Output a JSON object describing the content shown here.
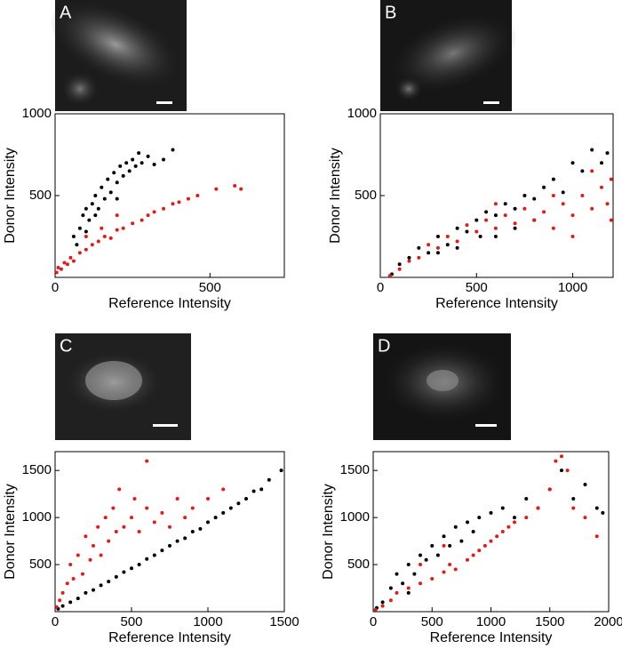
{
  "chart_data": [
    {
      "type": "scatter",
      "panel": "A",
      "x_label": "Reference Intensity",
      "y_label": "Donor Intensity",
      "xlim": [
        0,
        740
      ],
      "ylim": [
        0,
        1000
      ],
      "xticks": [
        0,
        500
      ],
      "yticks": [
        500,
        1000
      ],
      "series": [
        {
          "color": "#000000",
          "x": [
            60,
            80,
            90,
            100,
            110,
            120,
            130,
            140,
            150,
            160,
            170,
            180,
            190,
            200,
            210,
            220,
            230,
            240,
            250,
            260,
            270,
            280,
            300,
            320,
            350,
            380,
            70,
            100,
            130,
            200
          ],
          "y": [
            250,
            300,
            380,
            420,
            350,
            450,
            500,
            420,
            550,
            480,
            600,
            520,
            640,
            580,
            680,
            620,
            700,
            650,
            720,
            680,
            760,
            700,
            740,
            690,
            720,
            780,
            200,
            280,
            380,
            480
          ]
        },
        {
          "color": "#e41a1a",
          "x": [
            5,
            10,
            20,
            30,
            40,
            50,
            60,
            80,
            100,
            120,
            140,
            160,
            180,
            200,
            220,
            250,
            280,
            300,
            320,
            350,
            380,
            400,
            430,
            460,
            520,
            580,
            600,
            100,
            150,
            200
          ],
          "y": [
            30,
            60,
            50,
            90,
            80,
            120,
            100,
            150,
            170,
            200,
            220,
            250,
            240,
            290,
            300,
            330,
            350,
            380,
            400,
            420,
            450,
            460,
            480,
            500,
            540,
            560,
            540,
            250,
            300,
            380
          ]
        }
      ]
    },
    {
      "type": "scatter",
      "panel": "B",
      "x_label": "Reference Intensity",
      "y_label": "Donor Intensity",
      "xlim": [
        0,
        1210
      ],
      "ylim": [
        0,
        1000
      ],
      "xticks": [
        0,
        500,
        1000
      ],
      "yticks": [
        500,
        1000
      ],
      "series": [
        {
          "color": "#000000",
          "x": [
            60,
            100,
            150,
            200,
            250,
            300,
            350,
            400,
            450,
            500,
            520,
            550,
            600,
            650,
            700,
            750,
            800,
            850,
            900,
            950,
            1000,
            1050,
            1100,
            1150,
            1180,
            400,
            600,
            800,
            300,
            700
          ],
          "y": [
            20,
            80,
            120,
            180,
            150,
            250,
            200,
            300,
            280,
            350,
            250,
            400,
            380,
            450,
            420,
            500,
            480,
            550,
            600,
            520,
            700,
            650,
            780,
            700,
            760,
            180,
            250,
            350,
            150,
            300
          ]
        },
        {
          "color": "#e41a1a",
          "x": [
            50,
            100,
            150,
            200,
            250,
            300,
            350,
            400,
            450,
            500,
            550,
            600,
            650,
            700,
            750,
            800,
            850,
            900,
            950,
            1000,
            1050,
            1100,
            1150,
            1180,
            1200,
            1200,
            900,
            600,
            1100,
            1000
          ],
          "y": [
            10,
            50,
            100,
            120,
            200,
            180,
            250,
            220,
            320,
            280,
            350,
            300,
            380,
            330,
            420,
            350,
            400,
            300,
            450,
            380,
            500,
            420,
            550,
            450,
            600,
            350,
            500,
            450,
            650,
            250
          ]
        }
      ]
    },
    {
      "type": "scatter",
      "panel": "C",
      "x_label": "Reference Intensity",
      "y_label": "Donor Intensity",
      "xlim": [
        0,
        1500
      ],
      "ylim": [
        0,
        1700
      ],
      "xticks": [
        0,
        500,
        1000,
        1500
      ],
      "yticks": [
        500,
        1000,
        1500
      ],
      "series": [
        {
          "color": "#000000",
          "x": [
            20,
            50,
            100,
            150,
            200,
            250,
            300,
            350,
            400,
            450,
            500,
            550,
            600,
            650,
            700,
            750,
            800,
            850,
            900,
            950,
            1000,
            1050,
            1100,
            1150,
            1200,
            1250,
            1300,
            1350,
            1400,
            1480
          ],
          "y": [
            30,
            60,
            100,
            140,
            200,
            230,
            280,
            320,
            370,
            420,
            460,
            500,
            560,
            600,
            650,
            700,
            750,
            780,
            850,
            880,
            950,
            1000,
            1050,
            1100,
            1150,
            1200,
            1280,
            1300,
            1400,
            1500
          ]
        },
        {
          "color": "#e41a1a",
          "x": [
            10,
            30,
            50,
            80,
            100,
            120,
            150,
            180,
            200,
            230,
            250,
            280,
            300,
            330,
            350,
            380,
            400,
            420,
            450,
            500,
            520,
            550,
            600,
            650,
            700,
            750,
            800,
            850,
            900,
            1000,
            1100,
            600
          ],
          "y": [
            50,
            120,
            200,
            300,
            500,
            350,
            600,
            400,
            800,
            550,
            700,
            900,
            600,
            1000,
            750,
            1100,
            850,
            1300,
            900,
            1000,
            1200,
            850,
            1100,
            950,
            1050,
            900,
            1200,
            1000,
            1100,
            1200,
            1300,
            1600
          ]
        }
      ]
    },
    {
      "type": "scatter",
      "panel": "D",
      "x_label": "Reference Intensity",
      "y_label": "Donor Intensity",
      "xlim": [
        0,
        2000
      ],
      "ylim": [
        0,
        1700
      ],
      "xticks": [
        0,
        500,
        1000,
        1500,
        2000
      ],
      "yticks": [
        500,
        1000,
        1500
      ],
      "series": [
        {
          "color": "#000000",
          "x": [
            30,
            80,
            150,
            200,
            250,
            300,
            350,
            400,
            450,
            500,
            550,
            600,
            650,
            700,
            750,
            800,
            850,
            900,
            1000,
            1100,
            1200,
            1300,
            1400,
            1500,
            1600,
            1700,
            1800,
            1900,
            1950,
            300
          ],
          "y": [
            40,
            100,
            250,
            400,
            300,
            500,
            400,
            600,
            550,
            700,
            600,
            800,
            700,
            900,
            750,
            950,
            850,
            1000,
            1050,
            1100,
            1000,
            1200,
            1100,
            1300,
            1500,
            1200,
            1350,
            1100,
            1050,
            200
          ]
        },
        {
          "color": "#e41a1a",
          "x": [
            20,
            80,
            150,
            200,
            300,
            400,
            500,
            600,
            650,
            700,
            800,
            850,
            900,
            950,
            1000,
            1050,
            1100,
            1150,
            1200,
            1300,
            1400,
            1500,
            1550,
            1600,
            1650,
            1700,
            1800,
            1900,
            600,
            400
          ],
          "y": [
            20,
            60,
            120,
            200,
            250,
            300,
            350,
            420,
            500,
            450,
            550,
            600,
            650,
            700,
            750,
            800,
            850,
            900,
            950,
            1000,
            1100,
            1300,
            1600,
            1650,
            1500,
            1100,
            1000,
            800,
            700,
            500
          ]
        }
      ]
    }
  ]
}
